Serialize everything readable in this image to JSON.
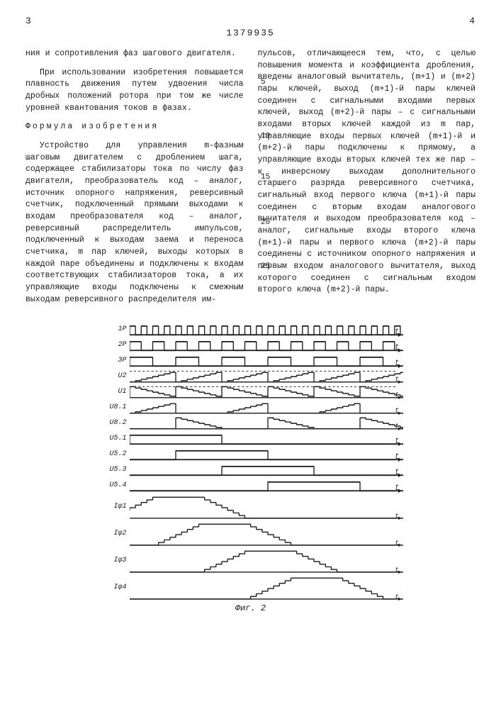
{
  "page": {
    "left_num": "3",
    "right_num": "4",
    "doc_number": "1379935"
  },
  "left_col": {
    "p1": "ния и сопротивления фаз шагового двигателя.",
    "p2": "При использовании изобретения повышается плавность движения путем удвоения числа дробных положений ротора при том же числе уровней квантования токов в фазах.",
    "formula_title": "Формула изобретения",
    "p3": "Устройство для управления m-фазным шаговым двигателем с дроблением шага, содержащее стабилизаторы тока по числу фаз двигателя, преобразователь код – аналог, источник опорного напряжения, реверсивный счетчик, подключенный прямыми выходами к входам преобразователя код – аналог, реверсивный распределитель импульсов, подключенный к выходам заема и переноса счетчика, m пар ключей, выходы которых в каждой паре объединены и подключены к входам соответствующих стабилизаторов тока, а их управляющие входы подключены к смежным выходам реверсивного распределителя им-"
  },
  "right_col": {
    "p1": "пульсов, отличающееся тем, что, с целью повышения момента и коэффициента дробления, введены аналоговый вычитатель, (m+1) и (m+2) пары ключей, выход (m+1)-й пары ключей соединен с сигнальными входами первых ключей, выход (m+2)-й пары – с сигнальными входами вторых ключей каждой из m пар, управляющие входы первых ключей (m+1)-й и (m+2)-й пары подключены к прямому, а управляющие входы вторых ключей тех же пар – к инверсному выходам дополнительного старшего разряда реверсивного счетчика, сигнальный вход первого ключа (m+1)-й пары соединен с вторым входам аналогового вычитателя и выходом преобразователя код – аналог, сигнальные входы второго ключа (m+1)-й пары и первого ключа (m+2)-й пары соединены с источником опорного напряжения и первым входом аналогового вычитателя, выход которого соединен с сигнальным входом второго ключа (m+2)-й пары."
  },
  "line_nums": {
    "n5": "5",
    "n10": "10",
    "n15": "15",
    "n20": "20",
    "n25": "25"
  },
  "figure": {
    "label": "Фиг. 2",
    "stroke": "#1a1a1a",
    "stroke_w": 1.3,
    "traces": [
      {
        "label": "1Р",
        "type": "pulse",
        "period": 16,
        "duty": 0.5,
        "amp": 9
      },
      {
        "label": "2Р",
        "type": "pulse",
        "period": 32,
        "duty": 0.5,
        "amp": 9
      },
      {
        "label": "3Р",
        "type": "pulse",
        "period": 64,
        "duty": 0.5,
        "amp": 9
      },
      {
        "label": "U2",
        "type": "staircase_up",
        "steps": 8,
        "period": 64,
        "amp": 14,
        "dashed_top": true
      },
      {
        "label": "U1",
        "type": "staircase_dn",
        "steps": 8,
        "period": 64,
        "amp": 14,
        "dashed_top": true
      },
      {
        "label": "U8.1",
        "type": "stair_half",
        "mode": "up",
        "amp": 14
      },
      {
        "label": "U8.2",
        "type": "stair_half",
        "mode": "dn",
        "amp": 14
      },
      {
        "label": "U5.1",
        "type": "gate",
        "segments": [
          [
            0,
            128
          ]
        ],
        "amp": 9
      },
      {
        "label": "U5.2",
        "type": "gate",
        "segments": [
          [
            64,
            192
          ]
        ],
        "amp": 9
      },
      {
        "label": "U5.3",
        "type": "gate",
        "segments": [
          [
            128,
            256
          ]
        ],
        "amp": 9
      },
      {
        "label": "U5.4",
        "type": "gate",
        "segments": [
          [
            192,
            320
          ]
        ],
        "amp": 9
      },
      {
        "label": "Iφ1",
        "type": "trapstair",
        "center": 64,
        "amp": 28
      },
      {
        "label": "Iφ2",
        "type": "trapstair",
        "center": 128,
        "amp": 28
      },
      {
        "label": "Iφ3",
        "type": "trapstair",
        "center": 192,
        "amp": 28
      },
      {
        "label": "Iφ4",
        "type": "trapstair",
        "center": 256,
        "amp": 28
      }
    ]
  }
}
